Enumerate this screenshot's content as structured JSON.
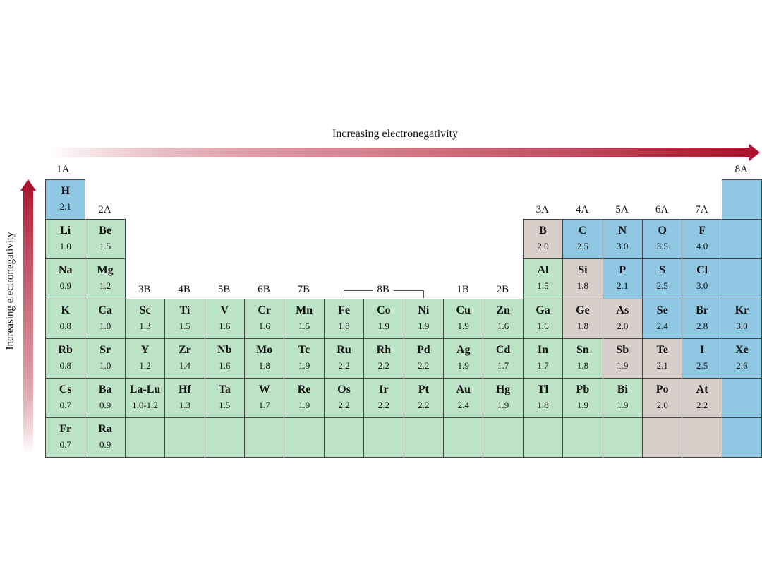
{
  "title_horizontal": "Increasing electronegativity",
  "title_vertical": "Increasing electronegativity",
  "colors": {
    "green": "#bde3c7",
    "blue": "#8fc7e3",
    "gray": "#d8cfcb",
    "arrow": "#a8102a"
  },
  "groups": [
    {
      "label": "1A",
      "col": 1,
      "row": 0
    },
    {
      "label": "2A",
      "col": 2,
      "row": 1
    },
    {
      "label": "3B",
      "col": 3,
      "row": 3
    },
    {
      "label": "4B",
      "col": 4,
      "row": 3
    },
    {
      "label": "5B",
      "col": 5,
      "row": 3
    },
    {
      "label": "6B",
      "col": 6,
      "row": 3
    },
    {
      "label": "7B",
      "col": 7,
      "row": 3
    },
    {
      "label": "8B",
      "col": 9,
      "row": 3,
      "bracket": true
    },
    {
      "label": "1B",
      "col": 11,
      "row": 3
    },
    {
      "label": "2B",
      "col": 12,
      "row": 3
    },
    {
      "label": "3A",
      "col": 13,
      "row": 1
    },
    {
      "label": "4A",
      "col": 14,
      "row": 1
    },
    {
      "label": "5A",
      "col": 15,
      "row": 1
    },
    {
      "label": "6A",
      "col": 16,
      "row": 1
    },
    {
      "label": "7A",
      "col": 17,
      "row": 1
    },
    {
      "label": "8A",
      "col": 18,
      "row": 0
    }
  ],
  "elements": [
    {
      "s": "H",
      "v": "2.1",
      "r": 1,
      "c": 1,
      "t": "blue"
    },
    {
      "s": "Li",
      "v": "1.0",
      "r": 2,
      "c": 1,
      "t": "green"
    },
    {
      "s": "Be",
      "v": "1.5",
      "r": 2,
      "c": 2,
      "t": "green"
    },
    {
      "s": "B",
      "v": "2.0",
      "r": 2,
      "c": 13,
      "t": "gray"
    },
    {
      "s": "C",
      "v": "2.5",
      "r": 2,
      "c": 14,
      "t": "blue"
    },
    {
      "s": "N",
      "v": "3.0",
      "r": 2,
      "c": 15,
      "t": "blue"
    },
    {
      "s": "O",
      "v": "3.5",
      "r": 2,
      "c": 16,
      "t": "blue"
    },
    {
      "s": "F",
      "v": "4.0",
      "r": 2,
      "c": 17,
      "t": "blue"
    },
    {
      "s": "Na",
      "v": "0.9",
      "r": 3,
      "c": 1,
      "t": "green"
    },
    {
      "s": "Mg",
      "v": "1.2",
      "r": 3,
      "c": 2,
      "t": "green"
    },
    {
      "s": "Al",
      "v": "1.5",
      "r": 3,
      "c": 13,
      "t": "green"
    },
    {
      "s": "Si",
      "v": "1.8",
      "r": 3,
      "c": 14,
      "t": "gray"
    },
    {
      "s": "P",
      "v": "2.1",
      "r": 3,
      "c": 15,
      "t": "blue"
    },
    {
      "s": "S",
      "v": "2.5",
      "r": 3,
      "c": 16,
      "t": "blue"
    },
    {
      "s": "Cl",
      "v": "3.0",
      "r": 3,
      "c": 17,
      "t": "blue"
    },
    {
      "s": "K",
      "v": "0.8",
      "r": 4,
      "c": 1,
      "t": "green"
    },
    {
      "s": "Ca",
      "v": "1.0",
      "r": 4,
      "c": 2,
      "t": "green"
    },
    {
      "s": "Sc",
      "v": "1.3",
      "r": 4,
      "c": 3,
      "t": "green"
    },
    {
      "s": "Ti",
      "v": "1.5",
      "r": 4,
      "c": 4,
      "t": "green"
    },
    {
      "s": "V",
      "v": "1.6",
      "r": 4,
      "c": 5,
      "t": "green"
    },
    {
      "s": "Cr",
      "v": "1.6",
      "r": 4,
      "c": 6,
      "t": "green"
    },
    {
      "s": "Mn",
      "v": "1.5",
      "r": 4,
      "c": 7,
      "t": "green"
    },
    {
      "s": "Fe",
      "v": "1.8",
      "r": 4,
      "c": 8,
      "t": "green"
    },
    {
      "s": "Co",
      "v": "1.9",
      "r": 4,
      "c": 9,
      "t": "green"
    },
    {
      "s": "Ni",
      "v": "1.9",
      "r": 4,
      "c": 10,
      "t": "green"
    },
    {
      "s": "Cu",
      "v": "1.9",
      "r": 4,
      "c": 11,
      "t": "green"
    },
    {
      "s": "Zn",
      "v": "1.6",
      "r": 4,
      "c": 12,
      "t": "green"
    },
    {
      "s": "Ga",
      "v": "1.6",
      "r": 4,
      "c": 13,
      "t": "green"
    },
    {
      "s": "Ge",
      "v": "1.8",
      "r": 4,
      "c": 14,
      "t": "gray"
    },
    {
      "s": "As",
      "v": "2.0",
      "r": 4,
      "c": 15,
      "t": "gray"
    },
    {
      "s": "Se",
      "v": "2.4",
      "r": 4,
      "c": 16,
      "t": "blue"
    },
    {
      "s": "Br",
      "v": "2.8",
      "r": 4,
      "c": 17,
      "t": "blue"
    },
    {
      "s": "Kr",
      "v": "3.0",
      "r": 4,
      "c": 18,
      "t": "blue"
    },
    {
      "s": "Rb",
      "v": "0.8",
      "r": 5,
      "c": 1,
      "t": "green"
    },
    {
      "s": "Sr",
      "v": "1.0",
      "r": 5,
      "c": 2,
      "t": "green"
    },
    {
      "s": "Y",
      "v": "1.2",
      "r": 5,
      "c": 3,
      "t": "green"
    },
    {
      "s": "Zr",
      "v": "1.4",
      "r": 5,
      "c": 4,
      "t": "green"
    },
    {
      "s": "Nb",
      "v": "1.6",
      "r": 5,
      "c": 5,
      "t": "green"
    },
    {
      "s": "Mo",
      "v": "1.8",
      "r": 5,
      "c": 6,
      "t": "green"
    },
    {
      "s": "Tc",
      "v": "1.9",
      "r": 5,
      "c": 7,
      "t": "green"
    },
    {
      "s": "Ru",
      "v": "2.2",
      "r": 5,
      "c": 8,
      "t": "green"
    },
    {
      "s": "Rh",
      "v": "2.2",
      "r": 5,
      "c": 9,
      "t": "green"
    },
    {
      "s": "Pd",
      "v": "2.2",
      "r": 5,
      "c": 10,
      "t": "green"
    },
    {
      "s": "Ag",
      "v": "1.9",
      "r": 5,
      "c": 11,
      "t": "green"
    },
    {
      "s": "Cd",
      "v": "1.7",
      "r": 5,
      "c": 12,
      "t": "green"
    },
    {
      "s": "In",
      "v": "1.7",
      "r": 5,
      "c": 13,
      "t": "green"
    },
    {
      "s": "Sn",
      "v": "1.8",
      "r": 5,
      "c": 14,
      "t": "green"
    },
    {
      "s": "Sb",
      "v": "1.9",
      "r": 5,
      "c": 15,
      "t": "gray"
    },
    {
      "s": "Te",
      "v": "2.1",
      "r": 5,
      "c": 16,
      "t": "gray"
    },
    {
      "s": "I",
      "v": "2.5",
      "r": 5,
      "c": 17,
      "t": "blue"
    },
    {
      "s": "Xe",
      "v": "2.6",
      "r": 5,
      "c": 18,
      "t": "blue"
    },
    {
      "s": "Cs",
      "v": "0.7",
      "r": 6,
      "c": 1,
      "t": "green"
    },
    {
      "s": "Ba",
      "v": "0.9",
      "r": 6,
      "c": 2,
      "t": "green"
    },
    {
      "s": "La-Lu",
      "v": "1.0-1.2",
      "r": 6,
      "c": 3,
      "t": "green"
    },
    {
      "s": "Hf",
      "v": "1.3",
      "r": 6,
      "c": 4,
      "t": "green"
    },
    {
      "s": "Ta",
      "v": "1.5",
      "r": 6,
      "c": 5,
      "t": "green"
    },
    {
      "s": "W",
      "v": "1.7",
      "r": 6,
      "c": 6,
      "t": "green"
    },
    {
      "s": "Re",
      "v": "1.9",
      "r": 6,
      "c": 7,
      "t": "green"
    },
    {
      "s": "Os",
      "v": "2.2",
      "r": 6,
      "c": 8,
      "t": "green"
    },
    {
      "s": "Ir",
      "v": "2.2",
      "r": 6,
      "c": 9,
      "t": "green"
    },
    {
      "s": "Pt",
      "v": "2.2",
      "r": 6,
      "c": 10,
      "t": "green"
    },
    {
      "s": "Au",
      "v": "2.4",
      "r": 6,
      "c": 11,
      "t": "green"
    },
    {
      "s": "Hg",
      "v": "1.9",
      "r": 6,
      "c": 12,
      "t": "green"
    },
    {
      "s": "Tl",
      "v": "1.8",
      "r": 6,
      "c": 13,
      "t": "green"
    },
    {
      "s": "Pb",
      "v": "1.9",
      "r": 6,
      "c": 14,
      "t": "green"
    },
    {
      "s": "Bi",
      "v": "1.9",
      "r": 6,
      "c": 15,
      "t": "green"
    },
    {
      "s": "Po",
      "v": "2.0",
      "r": 6,
      "c": 16,
      "t": "gray"
    },
    {
      "s": "At",
      "v": "2.2",
      "r": 6,
      "c": 17,
      "t": "gray"
    },
    {
      "s": "Fr",
      "v": "0.7",
      "r": 7,
      "c": 1,
      "t": "green"
    },
    {
      "s": "Ra",
      "v": "0.9",
      "r": 7,
      "c": 2,
      "t": "green"
    }
  ],
  "empty_cells": [
    {
      "r": 7,
      "c": 3,
      "t": "green"
    },
    {
      "r": 7,
      "c": 4,
      "t": "green"
    },
    {
      "r": 7,
      "c": 5,
      "t": "green"
    },
    {
      "r": 7,
      "c": 6,
      "t": "green"
    },
    {
      "r": 7,
      "c": 7,
      "t": "green"
    },
    {
      "r": 7,
      "c": 8,
      "t": "green"
    },
    {
      "r": 7,
      "c": 9,
      "t": "green"
    },
    {
      "r": 7,
      "c": 10,
      "t": "green"
    },
    {
      "r": 7,
      "c": 11,
      "t": "green"
    },
    {
      "r": 7,
      "c": 12,
      "t": "green"
    },
    {
      "r": 7,
      "c": 13,
      "t": "green"
    },
    {
      "r": 7,
      "c": 14,
      "t": "green"
    },
    {
      "r": 7,
      "c": 15,
      "t": "green"
    },
    {
      "r": 7,
      "c": 16,
      "t": "gray"
    },
    {
      "r": 7,
      "c": 17,
      "t": "gray"
    },
    {
      "r": 1,
      "c": 18,
      "t": "blue"
    },
    {
      "r": 2,
      "c": 18,
      "t": "blue"
    },
    {
      "r": 3,
      "c": 18,
      "t": "blue"
    },
    {
      "r": 6,
      "c": 18,
      "t": "blue"
    },
    {
      "r": 7,
      "c": 18,
      "t": "blue"
    }
  ]
}
